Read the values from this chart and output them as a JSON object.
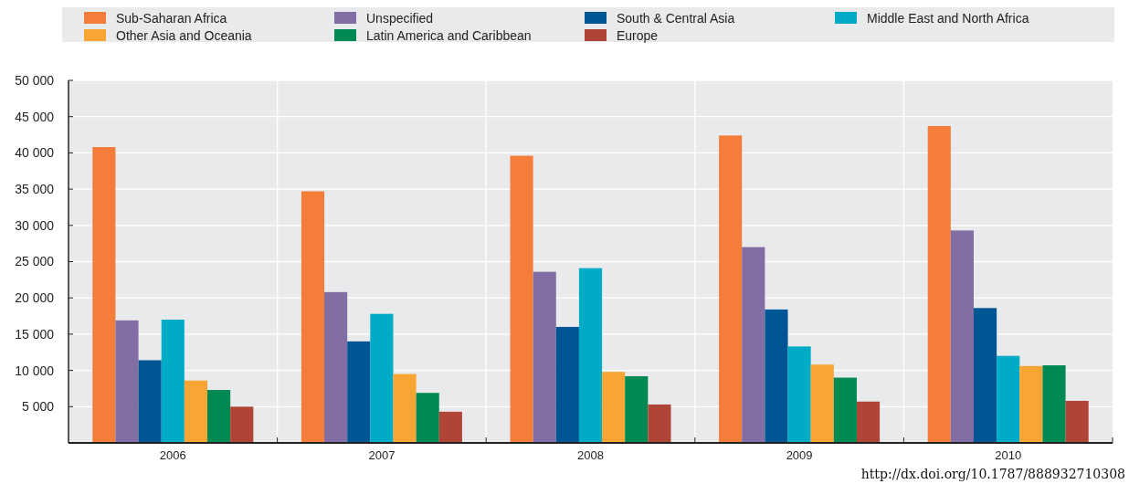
{
  "chart_data": {
    "type": "bar",
    "categories": [
      "2006",
      "2007",
      "2008",
      "2009",
      "2010"
    ],
    "series": [
      {
        "name": "Sub-Saharan Africa",
        "color": "#f47d3a",
        "values": [
          40800,
          34700,
          39600,
          42400,
          43700
        ]
      },
      {
        "name": "Unspecified",
        "color": "#836da5",
        "values": [
          16900,
          20800,
          23600,
          27000,
          29300
        ]
      },
      {
        "name": "South & Central Asia",
        "color": "#005694",
        "values": [
          11400,
          14000,
          16000,
          18400,
          18600
        ]
      },
      {
        "name": "Middle East and North Africa",
        "color": "#00abc7",
        "values": [
          17000,
          17800,
          24100,
          13300,
          12000
        ]
      },
      {
        "name": "Other Asia and Oceania",
        "color": "#f9a533",
        "values": [
          8600,
          9500,
          9800,
          10800,
          10600
        ]
      },
      {
        "name": "Latin America and Caribbean",
        "color": "#008953",
        "values": [
          7300,
          6900,
          9200,
          9000,
          10700
        ]
      },
      {
        "name": "Europe",
        "color": "#b04537",
        "values": [
          5000,
          4300,
          5300,
          5700,
          5800
        ]
      }
    ],
    "ylim": [
      0,
      50000
    ],
    "yticks": [
      {
        "value": 5000,
        "label": "5 000"
      },
      {
        "value": 10000,
        "label": "10 000"
      },
      {
        "value": 15000,
        "label": "15 000"
      },
      {
        "value": 20000,
        "label": "20 000"
      },
      {
        "value": 25000,
        "label": "25 000"
      },
      {
        "value": 30000,
        "label": "30 000"
      },
      {
        "value": 35000,
        "label": "35 000"
      },
      {
        "value": 40000,
        "label": "40 000"
      },
      {
        "value": 45000,
        "label": "45 000"
      },
      {
        "value": 50000,
        "label": "50 000"
      }
    ],
    "grid": true,
    "legend": "top",
    "annotations": [
      "http://dx.doi.org/10.1787/888932710308"
    ]
  }
}
